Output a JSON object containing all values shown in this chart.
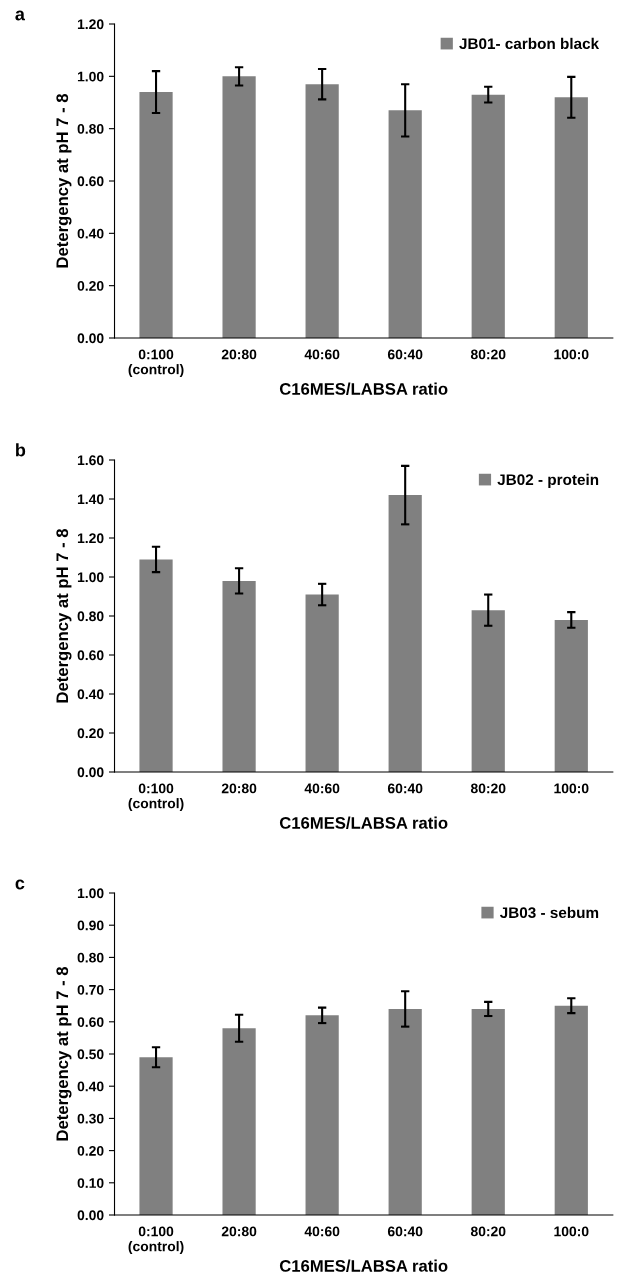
{
  "chart_data": [
    {
      "type": "bar",
      "title": "a",
      "xlabel": "C16MES/LABSA ratio",
      "ylabel": "Detergency at pH 7 - 8",
      "categories": [
        "0:100\n(control)",
        "20:80",
        "40:60",
        "60:40",
        "80:20",
        "100:0"
      ],
      "series": [
        {
          "name": "JB01- carbon black",
          "color": "#808080",
          "values": [
            0.94,
            1.0,
            0.97,
            0.87,
            0.93,
            0.92
          ],
          "errors": [
            0.08,
            0.035,
            0.058,
            0.1,
            0.03,
            0.078
          ]
        }
      ],
      "ylim": [
        0,
        1.2
      ],
      "yticks": [
        {
          "value": 0,
          "label": "0.00"
        },
        {
          "value": 0.2,
          "label": "0.20"
        },
        {
          "value": 0.4,
          "label": "0.40"
        },
        {
          "value": 0.6,
          "label": "0.60"
        },
        {
          "value": 0.8,
          "label": "0.80"
        },
        {
          "value": 1.0,
          "label": "1.00"
        },
        {
          "value": 1.2,
          "label": "1.20"
        }
      ],
      "legend": "top right"
    },
    {
      "type": "bar",
      "title": "b",
      "xlabel": "C16MES/LABSA ratio",
      "ylabel": "Detergency at pH 7 - 8",
      "categories": [
        "0:100\n(control)",
        "20:80",
        "40:60",
        "60:40",
        "80:20",
        "100:0"
      ],
      "series": [
        {
          "name": "JB02 - protein",
          "color": "#808080",
          "values": [
            1.09,
            0.98,
            0.91,
            1.42,
            0.83,
            0.78
          ],
          "errors": [
            0.065,
            0.065,
            0.055,
            0.15,
            0.08,
            0.04
          ]
        }
      ],
      "ylim": [
        0,
        1.6
      ],
      "yticks": [
        {
          "value": 0,
          "label": "0.00"
        },
        {
          "value": 0.2,
          "label": "0.20"
        },
        {
          "value": 0.4,
          "label": "0.40"
        },
        {
          "value": 0.6,
          "label": "0.60"
        },
        {
          "value": 0.8,
          "label": "0.80"
        },
        {
          "value": 1.0,
          "label": "1.00"
        },
        {
          "value": 1.2,
          "label": "1.20"
        },
        {
          "value": 1.4,
          "label": "1.40"
        },
        {
          "value": 1.6,
          "label": "1.60"
        }
      ],
      "legend": "top right"
    },
    {
      "type": "bar",
      "title": "c",
      "xlabel": "C16MES/LABSA ratio",
      "ylabel": "Detergency at pH 7 - 8",
      "categories": [
        "0:100\n(control)",
        "20:80",
        "40:60",
        "60:40",
        "80:20",
        "100:0"
      ],
      "series": [
        {
          "name": "JB03 - sebum",
          "color": "#808080",
          "values": [
            0.49,
            0.58,
            0.62,
            0.64,
            0.64,
            0.65
          ],
          "errors": [
            0.031,
            0.042,
            0.024,
            0.055,
            0.022,
            0.023
          ]
        }
      ],
      "ylim": [
        0,
        1.0
      ],
      "yticks": [
        {
          "value": 0,
          "label": "0.00"
        },
        {
          "value": 0.1,
          "label": "0.10"
        },
        {
          "value": 0.2,
          "label": "0.20"
        },
        {
          "value": 0.3,
          "label": "0.30"
        },
        {
          "value": 0.4,
          "label": "0.40"
        },
        {
          "value": 0.5,
          "label": "0.50"
        },
        {
          "value": 0.6,
          "label": "0.60"
        },
        {
          "value": 0.7,
          "label": "0.70"
        },
        {
          "value": 0.8,
          "label": "0.80"
        },
        {
          "value": 0.9,
          "label": "0.90"
        },
        {
          "value": 1.0,
          "label": "1.00"
        }
      ],
      "legend": "top right"
    }
  ]
}
